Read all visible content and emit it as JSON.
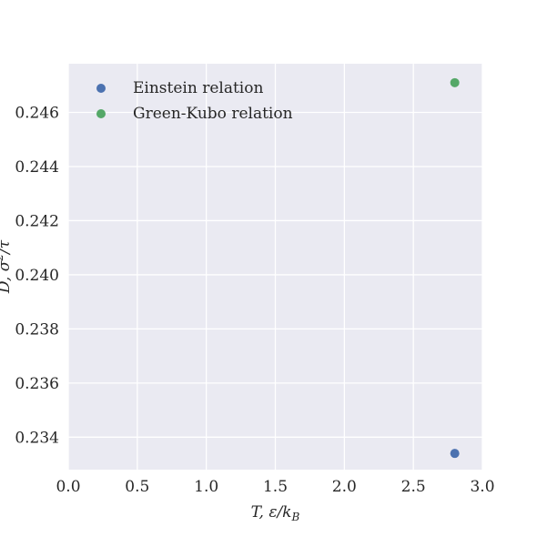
{
  "chart_data": {
    "type": "scatter",
    "title": "",
    "xlabel": "T, ε/k_B",
    "ylabel": "D, σ²/τ",
    "xlim": [
      0.0,
      3.0
    ],
    "ylim": [
      0.2328,
      0.2478
    ],
    "xticks": [
      0.0,
      0.5,
      1.0,
      1.5,
      2.0,
      2.5,
      3.0
    ],
    "xtick_labels": [
      "0.0",
      "0.5",
      "1.0",
      "1.5",
      "2.0",
      "2.5",
      "3.0"
    ],
    "yticks": [
      0.234,
      0.236,
      0.238,
      0.24,
      0.242,
      0.244,
      0.246
    ],
    "ytick_labels": [
      "0.234",
      "0.236",
      "0.238",
      "0.240",
      "0.242",
      "0.244",
      "0.246"
    ],
    "grid": true,
    "legend_position": "top-left",
    "background_color": "#EAEAF2",
    "grid_color": "#FFFFFF",
    "series": [
      {
        "name": "Einstein relation",
        "color": "#4C72B0",
        "points": [
          {
            "x": 2.8,
            "y": 0.2334
          }
        ]
      },
      {
        "name": "Green-Kubo relation",
        "color": "#55A868",
        "points": [
          {
            "x": 2.8,
            "y": 0.2471
          }
        ]
      }
    ]
  }
}
